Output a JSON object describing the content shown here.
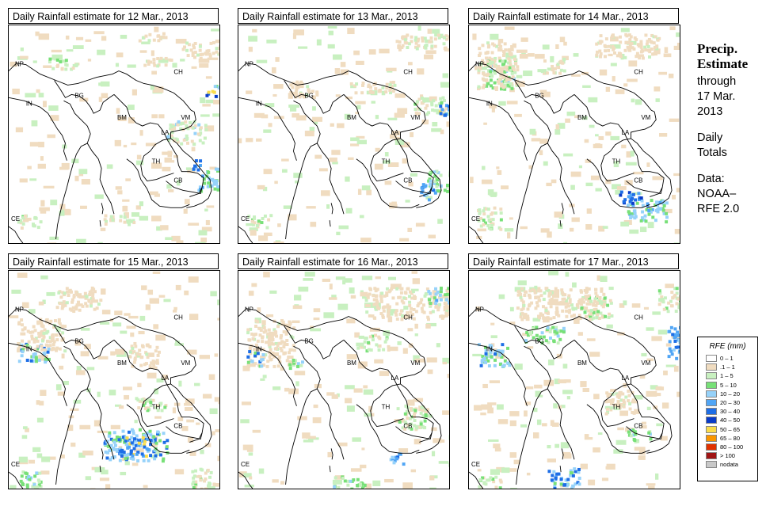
{
  "panels": [
    {
      "title": "Daily Rainfall estimate for  12 Mar., 2013"
    },
    {
      "title": "Daily Rainfall estimate for  13 Mar., 2013"
    },
    {
      "title": "Daily Rainfall estimate for  14 Mar., 2013"
    },
    {
      "title": "Daily Rainfall estimate for  15 Mar., 2013"
    },
    {
      "title": "Daily Rainfall estimate for  16 Mar., 2013"
    },
    {
      "title": "Daily Rainfall estimate for  17 Mar., 2013"
    }
  ],
  "country_labels": [
    "NP",
    "CH",
    "IN",
    "BG",
    "BM",
    "VM",
    "LA",
    "TH",
    "CB",
    "CE"
  ],
  "side": {
    "title1": "Precip.",
    "title2": "Estimate",
    "through": "through",
    "date1": "17 Mar.",
    "date2": "2013",
    "daily1": "Daily",
    "daily2": "Totals",
    "data1": "Data:",
    "data2": "NOAA–",
    "data3": "RFE 2.0"
  },
  "legend": {
    "title": "RFE (mm)",
    "items": [
      {
        "label": "0 – 1",
        "color": "#ffffff"
      },
      {
        "label": ".1 – 1",
        "color": "#f0dcc0"
      },
      {
        "label": "1 – 5",
        "color": "#c8f0c0"
      },
      {
        "label": "5 – 10",
        "color": "#78e078"
      },
      {
        "label": "10 – 20",
        "color": "#96d2fa"
      },
      {
        "label": "20 – 30",
        "color": "#50a5f5"
      },
      {
        "label": "30 – 40",
        "color": "#1e6ee6"
      },
      {
        "label": "40 – 50",
        "color": "#0a3cc8"
      },
      {
        "label": "50 – 65",
        "color": "#fadc4b"
      },
      {
        "label": "65 – 80",
        "color": "#fa9600"
      },
      {
        "label": "80 – 100",
        "color": "#e13200"
      },
      {
        "label": "> 100",
        "color": "#a01414"
      },
      {
        "label": "nodata",
        "color": "#c8c8c8"
      }
    ]
  }
}
